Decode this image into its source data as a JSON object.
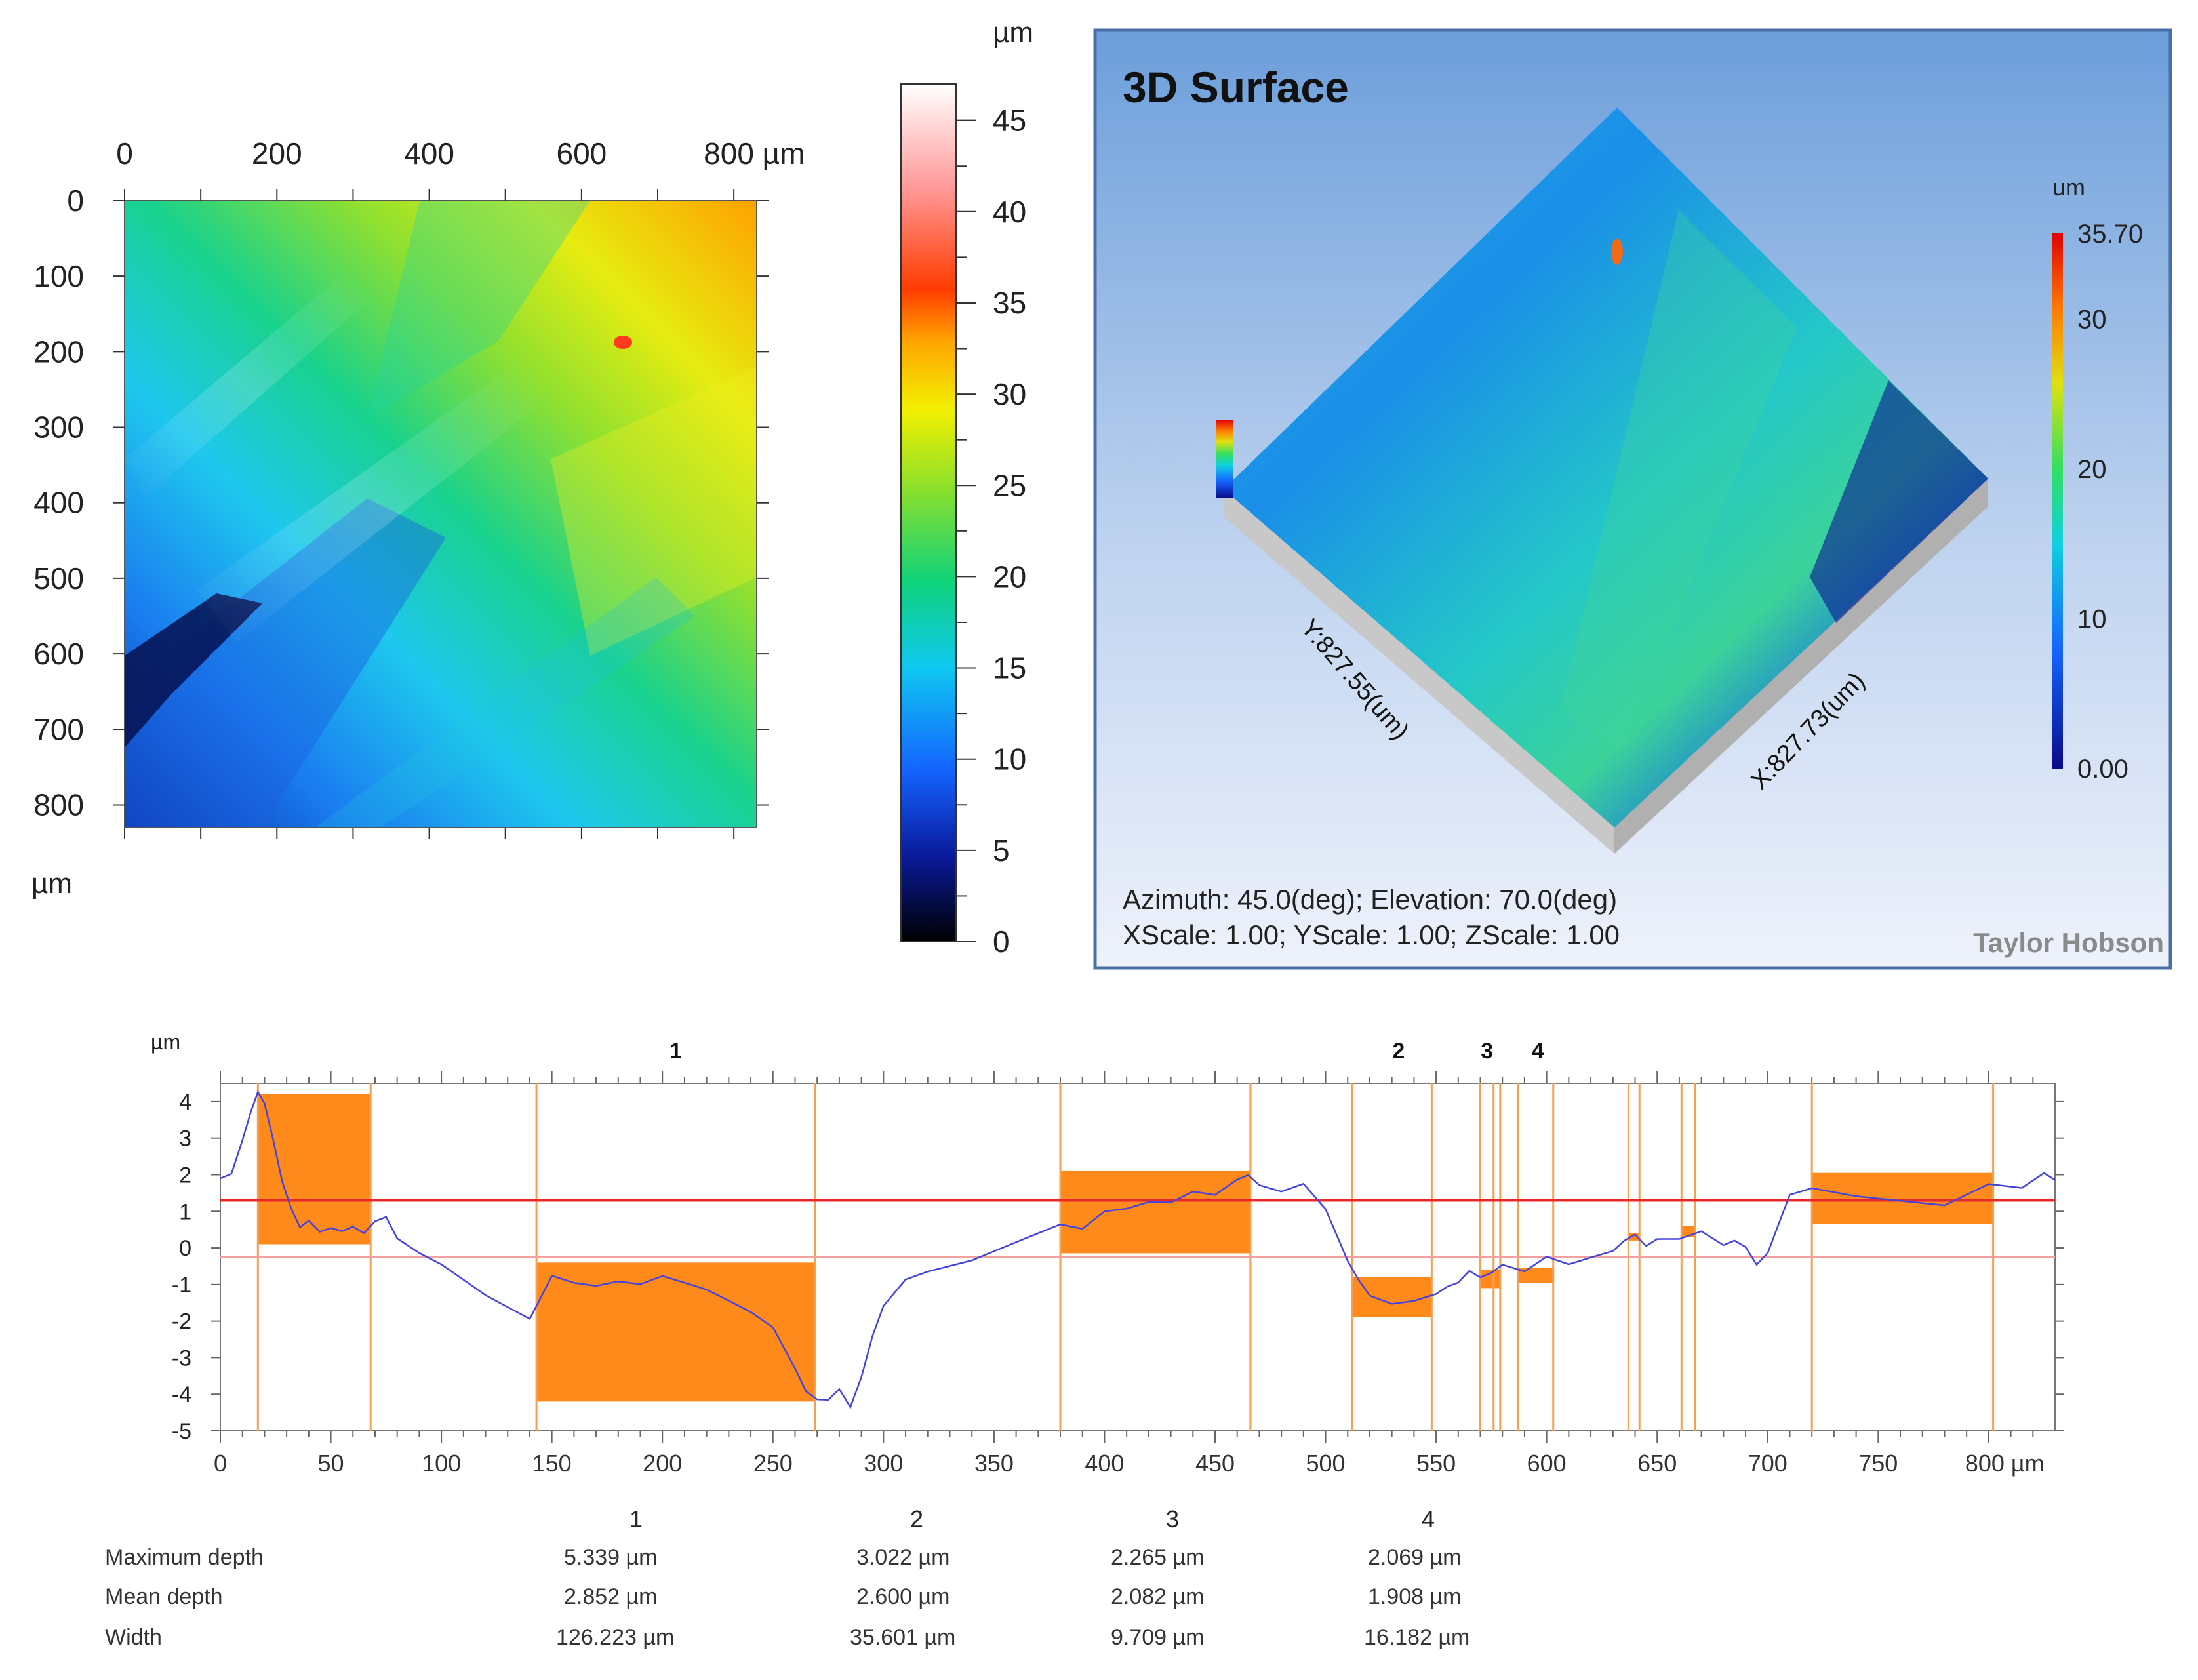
{
  "chart_data": [
    {
      "type": "heatmap",
      "title": "",
      "x_unit": "µm",
      "y_unit": "µm",
      "x_ticks": [
        "0",
        "200",
        "400",
        "600",
        "800 µm"
      ],
      "y_ticks": [
        "0",
        "100",
        "200",
        "300",
        "400",
        "500",
        "600",
        "700",
        "800"
      ],
      "xlim": [
        0,
        830
      ],
      "ylim": [
        0,
        830
      ],
      "colorbar": {
        "unit": "µm",
        "range": [
          0,
          47
        ],
        "ticks": [
          "0",
          "5",
          "10",
          "15",
          "20",
          "25",
          "30",
          "35",
          "40",
          "45"
        ],
        "colors": [
          "#000000",
          "#0a1a9c",
          "#1464ff",
          "#0fc8f0",
          "#0fd27a",
          "#8ee02a",
          "#f2f000",
          "#ffa500",
          "#ff3c00",
          "#ff9a9a",
          "#ffffff"
        ]
      }
    },
    {
      "type": "heatmap",
      "title": "3D Surface",
      "view": "3d-surface",
      "colorbar": {
        "unit": "um",
        "range": [
          0.0,
          35.7
        ],
        "ticks": [
          "0.00",
          "10",
          "20",
          "30",
          "35.70"
        ]
      },
      "y_axis_label": "Y:827.55(um)",
      "x_axis_label": "X:827.73(um)",
      "info_line_1": "Azimuth: 45.0(deg); Elevation: 70.0(deg)",
      "info_line_2": "XScale: 1.00; YScale: 1.00; ZScale: 1.00",
      "brand": "Taylor Hobson"
    },
    {
      "type": "line",
      "ylabel": "µm",
      "xlabel": "µm",
      "xlim": [
        0,
        830
      ],
      "ylim": [
        -5,
        4.5
      ],
      "x_ticks": [
        "0",
        "50",
        "100",
        "150",
        "200",
        "250",
        "300",
        "350",
        "400",
        "450",
        "500",
        "550",
        "600",
        "650",
        "700",
        "750",
        "800 µm"
      ],
      "y_ticks": [
        "-5",
        "-4",
        "-3",
        "-2",
        "-1",
        "0",
        "1",
        "2",
        "3",
        "4"
      ],
      "reference_lines": [
        {
          "name": "upper",
          "y": 1.3,
          "color": "#e8282b"
        },
        {
          "name": "lower",
          "y": -0.25,
          "color": "#f4a0a0"
        }
      ],
      "series": [
        {
          "name": "profile",
          "color": "#4444dd",
          "x": [
            0,
            5,
            10,
            14,
            17,
            20,
            24,
            28,
            32,
            36,
            40,
            45,
            50,
            55,
            60,
            65,
            70,
            75,
            80,
            90,
            100,
            110,
            120,
            130,
            140,
            145,
            150,
            160,
            170,
            180,
            190,
            200,
            210,
            220,
            230,
            240,
            250,
            260,
            265,
            270,
            275,
            280,
            285,
            290,
            295,
            300,
            310,
            320,
            340,
            360,
            380,
            390,
            400,
            410,
            420,
            430,
            440,
            450,
            460,
            465,
            470,
            480,
            490,
            500,
            505,
            510,
            515,
            520,
            530,
            540,
            550,
            555,
            560,
            565,
            570,
            575,
            580,
            590,
            600,
            610,
            620,
            630,
            635,
            640,
            645,
            650,
            660,
            670,
            680,
            685,
            690,
            695,
            700,
            705,
            710,
            720,
            740,
            760,
            780,
            800,
            815,
            825,
            830
          ],
          "y": [
            1.9,
            2.0,
            2.9,
            3.7,
            4.2,
            3.9,
            2.9,
            1.8,
            1.1,
            0.6,
            0.8,
            0.5,
            0.6,
            0.5,
            0.6,
            0.4,
            0.7,
            0.8,
            0.2,
            -0.2,
            -0.5,
            -0.9,
            -1.3,
            -1.6,
            -1.9,
            -1.3,
            -0.7,
            -0.9,
            -1.0,
            -0.9,
            -1.0,
            -0.8,
            -1.0,
            -1.2,
            -1.5,
            -1.8,
            -2.2,
            -3.3,
            -3.9,
            -4.1,
            -4.1,
            -3.8,
            -4.3,
            -3.5,
            -2.4,
            -1.6,
            -0.9,
            -0.7,
            -0.4,
            0.1,
            0.6,
            0.5,
            1.0,
            1.1,
            1.3,
            1.3,
            1.6,
            1.5,
            1.9,
            2.0,
            1.7,
            1.5,
            1.7,
            1.0,
            0.3,
            -0.4,
            -0.9,
            -1.3,
            -1.5,
            -1.4,
            -1.2,
            -1.0,
            -0.9,
            -0.6,
            -0.8,
            -0.7,
            -0.5,
            -0.7,
            -0.3,
            -0.5,
            -0.3,
            -0.1,
            0.2,
            0.4,
            0.1,
            0.3,
            0.3,
            0.5,
            0.1,
            0.2,
            0.0,
            -0.5,
            -0.2,
            0.6,
            1.4,
            1.6,
            1.4,
            1.3,
            1.2,
            1.8,
            1.7,
            2.1,
            1.9
          ]
        }
      ],
      "segment_markers": [
        "1",
        "2",
        "3",
        "4"
      ],
      "depth_rects": [
        {
          "x0": 17,
          "x1": 68,
          "y0": 0.1,
          "y1": 4.2
        },
        {
          "x0": 143,
          "x1": 269,
          "y0": -4.2,
          "y1": -0.4
        },
        {
          "x0": 380,
          "x1": 466,
          "y0": -0.15,
          "y1": 2.1
        },
        {
          "x0": 512,
          "x1": 548,
          "y0": -1.9,
          "y1": -0.8
        },
        {
          "x0": 570,
          "x1": 579,
          "y0": -1.1,
          "y1": -0.6
        },
        {
          "x0": 587,
          "x1": 603,
          "y0": -0.95,
          "y1": -0.55
        },
        {
          "x0": 637,
          "x1": 642,
          "y0": 0.2,
          "y1": 0.4
        },
        {
          "x0": 661,
          "x1": 667,
          "y0": 0.3,
          "y1": 0.6
        },
        {
          "x0": 720,
          "x1": 802,
          "y0": 0.65,
          "y1": 2.05
        }
      ],
      "vertical_guides": [
        17,
        68,
        143,
        269,
        380,
        466,
        512,
        548,
        570,
        576,
        579,
        587,
        603,
        637,
        642,
        661,
        667,
        720,
        802
      ],
      "table": {
        "columns": [
          "1",
          "2",
          "3",
          "4"
        ],
        "rows": [
          {
            "label": "Maximum depth",
            "values": [
              "5.339 µm",
              "3.022 µm",
              "2.265 µm",
              "2.069 µm"
            ]
          },
          {
            "label": "Mean depth",
            "values": [
              "2.852 µm",
              "2.600 µm",
              "2.082 µm",
              "1.908 µm"
            ]
          },
          {
            "label": "Width",
            "values": [
              "126.223 µm",
              "35.601 µm",
              "9.709 µm",
              "16.182 µm"
            ]
          }
        ]
      }
    }
  ]
}
